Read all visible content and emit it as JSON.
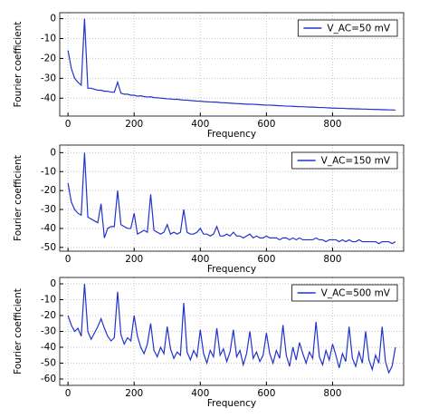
{
  "chart_data": [
    {
      "type": "line",
      "xlabel": "Frequency",
      "ylabel": "Fourier coefficient",
      "x": [
        0,
        10,
        20,
        30,
        40,
        50,
        60,
        70,
        80,
        90,
        100,
        110,
        120,
        130,
        140,
        150,
        160,
        170,
        180,
        190,
        200,
        210,
        220,
        230,
        240,
        250,
        260,
        270,
        280,
        290,
        300,
        310,
        320,
        330,
        340,
        350,
        360,
        370,
        380,
        390,
        400,
        410,
        420,
        430,
        440,
        450,
        460,
        470,
        480,
        490,
        500,
        510,
        520,
        530,
        540,
        550,
        560,
        570,
        580,
        590,
        600,
        610,
        620,
        630,
        640,
        650,
        660,
        670,
        680,
        690,
        700,
        710,
        720,
        730,
        740,
        750,
        760,
        770,
        780,
        790,
        800,
        810,
        820,
        830,
        840,
        850,
        860,
        870,
        880,
        890,
        900,
        910,
        920,
        930,
        940,
        950,
        960,
        970,
        980,
        990
      ],
      "series": [
        {
          "name": "V_AC=50 mV",
          "color": "#2233cc",
          "values": [
            -16,
            -25,
            -30,
            -32,
            -33.5,
            0,
            -35,
            -35,
            -35.5,
            -36,
            -36,
            -36.5,
            -36.5,
            -37,
            -37,
            -32,
            -37.5,
            -38,
            -38,
            -38.5,
            -38.5,
            -39,
            -38.8,
            -39.2,
            -39.4,
            -39.3,
            -39.7,
            -39.8,
            -40,
            -40.1,
            -40.3,
            -40.4,
            -40.6,
            -40.5,
            -40.8,
            -41,
            -41,
            -41.2,
            -41.3,
            -41.5,
            -41.5,
            -41.7,
            -41.8,
            -41.9,
            -42,
            -42,
            -42.2,
            -42.3,
            -42.4,
            -42.5,
            -42.6,
            -42.7,
            -42.8,
            -42.9,
            -43,
            -43,
            -43.1,
            -43.2,
            -43.3,
            -43.4,
            -43.5,
            -43.5,
            -43.6,
            -43.7,
            -43.8,
            -43.9,
            -44,
            -44,
            -44.1,
            -44.2,
            -44.3,
            -44.3,
            -44.4,
            -44.5,
            -44.5,
            -44.6,
            -44.7,
            -44.7,
            -44.8,
            -44.9,
            -45,
            -45,
            -45.1,
            -45.1,
            -45.2,
            -45.3,
            -45.3,
            -45.4,
            -45.4,
            -45.5,
            -45.5,
            -45.6,
            -45.6,
            -45.7,
            -45.7,
            -45.8,
            -45.8,
            -45.9,
            -45.9,
            -46
          ]
        }
      ],
      "xlim": [
        -25,
        1015
      ],
      "ylim": [
        -49,
        3
      ],
      "xticks": [
        0,
        200,
        400,
        600,
        800
      ],
      "yticks": [
        0,
        -10,
        -20,
        -30,
        -40
      ],
      "grid": true,
      "legend": "upper right"
    },
    {
      "type": "line",
      "xlabel": "Frequency",
      "ylabel": "Fourier coefficient",
      "x": [
        0,
        10,
        20,
        30,
        40,
        50,
        60,
        70,
        80,
        90,
        100,
        110,
        120,
        130,
        140,
        150,
        160,
        170,
        180,
        190,
        200,
        210,
        220,
        230,
        240,
        250,
        260,
        270,
        280,
        290,
        300,
        310,
        320,
        330,
        340,
        350,
        360,
        370,
        380,
        390,
        400,
        410,
        420,
        430,
        440,
        450,
        460,
        470,
        480,
        490,
        500,
        510,
        520,
        530,
        540,
        550,
        560,
        570,
        580,
        590,
        600,
        610,
        620,
        630,
        640,
        650,
        660,
        670,
        680,
        690,
        700,
        710,
        720,
        730,
        740,
        750,
        760,
        770,
        780,
        790,
        800,
        810,
        820,
        830,
        840,
        850,
        860,
        870,
        880,
        890,
        900,
        910,
        920,
        930,
        940,
        950,
        960,
        970,
        980,
        990
      ],
      "series": [
        {
          "name": "V_AC=150 mV",
          "color": "#2233cc",
          "values": [
            -16,
            -26,
            -30,
            -32,
            -33,
            0,
            -34,
            -35,
            -36,
            -37,
            -27,
            -45,
            -40,
            -39,
            -39,
            -20,
            -38,
            -39,
            -40,
            -40,
            -32,
            -43,
            -42,
            -41,
            -42,
            -22,
            -41,
            -42,
            -43,
            -42,
            -38,
            -43,
            -42,
            -43,
            -42,
            -30,
            -42,
            -43,
            -43,
            -42,
            -40,
            -43,
            -43,
            -44,
            -43,
            -39,
            -44,
            -44,
            -43,
            -44,
            -42,
            -44,
            -44,
            -45,
            -44,
            -43,
            -45,
            -44,
            -45,
            -45,
            -44,
            -45,
            -45,
            -45,
            -46,
            -45,
            -45,
            -46,
            -45,
            -46,
            -45,
            -46,
            -46,
            -46,
            -46,
            -45,
            -46,
            -46,
            -47,
            -46,
            -46,
            -46,
            -47,
            -46,
            -47,
            -46,
            -47,
            -47,
            -46,
            -47,
            -47,
            -47,
            -47,
            -47,
            -48,
            -47,
            -47,
            -47,
            -48,
            -47
          ]
        }
      ],
      "xlim": [
        -25,
        1015
      ],
      "ylim": [
        -52,
        4
      ],
      "xticks": [
        0,
        200,
        400,
        600,
        800
      ],
      "yticks": [
        0,
        -10,
        -20,
        -30,
        -40,
        -50
      ],
      "grid": true,
      "legend": "upper right"
    },
    {
      "type": "line",
      "xlabel": "Frequency",
      "ylabel": "Fourier coefficient",
      "x": [
        0,
        10,
        20,
        30,
        40,
        50,
        60,
        70,
        80,
        90,
        100,
        110,
        120,
        130,
        140,
        150,
        160,
        170,
        180,
        190,
        200,
        210,
        220,
        230,
        240,
        250,
        260,
        270,
        280,
        290,
        300,
        310,
        320,
        330,
        340,
        350,
        360,
        370,
        380,
        390,
        400,
        410,
        420,
        430,
        440,
        450,
        460,
        470,
        480,
        490,
        500,
        510,
        520,
        530,
        540,
        550,
        560,
        570,
        580,
        590,
        600,
        610,
        620,
        630,
        640,
        650,
        660,
        670,
        680,
        690,
        700,
        710,
        720,
        730,
        740,
        750,
        760,
        770,
        780,
        790,
        800,
        810,
        820,
        830,
        840,
        850,
        860,
        870,
        880,
        890,
        900,
        910,
        920,
        930,
        940,
        950,
        960,
        970,
        980,
        990
      ],
      "series": [
        {
          "name": "V_AC=500 mV",
          "color": "#2233cc",
          "values": [
            -20,
            -26,
            -30,
            -28,
            -33,
            0,
            -30,
            -35,
            -31,
            -27,
            -22,
            -28,
            -33,
            -36,
            -34,
            -5,
            -32,
            -38,
            -34,
            -36,
            -20,
            -33,
            -40,
            -44,
            -38,
            -25,
            -42,
            -46,
            -40,
            -44,
            -27,
            -41,
            -47,
            -43,
            -45,
            -12,
            -43,
            -48,
            -42,
            -46,
            -29,
            -44,
            -50,
            -42,
            -46,
            -28,
            -45,
            -41,
            -49,
            -43,
            -29,
            -46,
            -42,
            -51,
            -44,
            -30,
            -47,
            -43,
            -49,
            -45,
            -31,
            -44,
            -50,
            -42,
            -47,
            -26,
            -45,
            -52,
            -40,
            -48,
            -37,
            -44,
            -50,
            -43,
            -47,
            -24,
            -46,
            -51,
            -42,
            -48,
            -38,
            -45,
            -53,
            -44,
            -49,
            -27,
            -47,
            -52,
            -43,
            -50,
            -30,
            -48,
            -54,
            -45,
            -50,
            -27,
            -49,
            -56,
            -52,
            -40
          ]
        }
      ],
      "xlim": [
        -25,
        1015
      ],
      "ylim": [
        -64,
        4
      ],
      "xticks": [
        0,
        200,
        400,
        600,
        800
      ],
      "yticks": [
        0,
        -10,
        -20,
        -30,
        -40,
        -50,
        -60
      ],
      "grid": true,
      "legend": "upper right"
    }
  ]
}
